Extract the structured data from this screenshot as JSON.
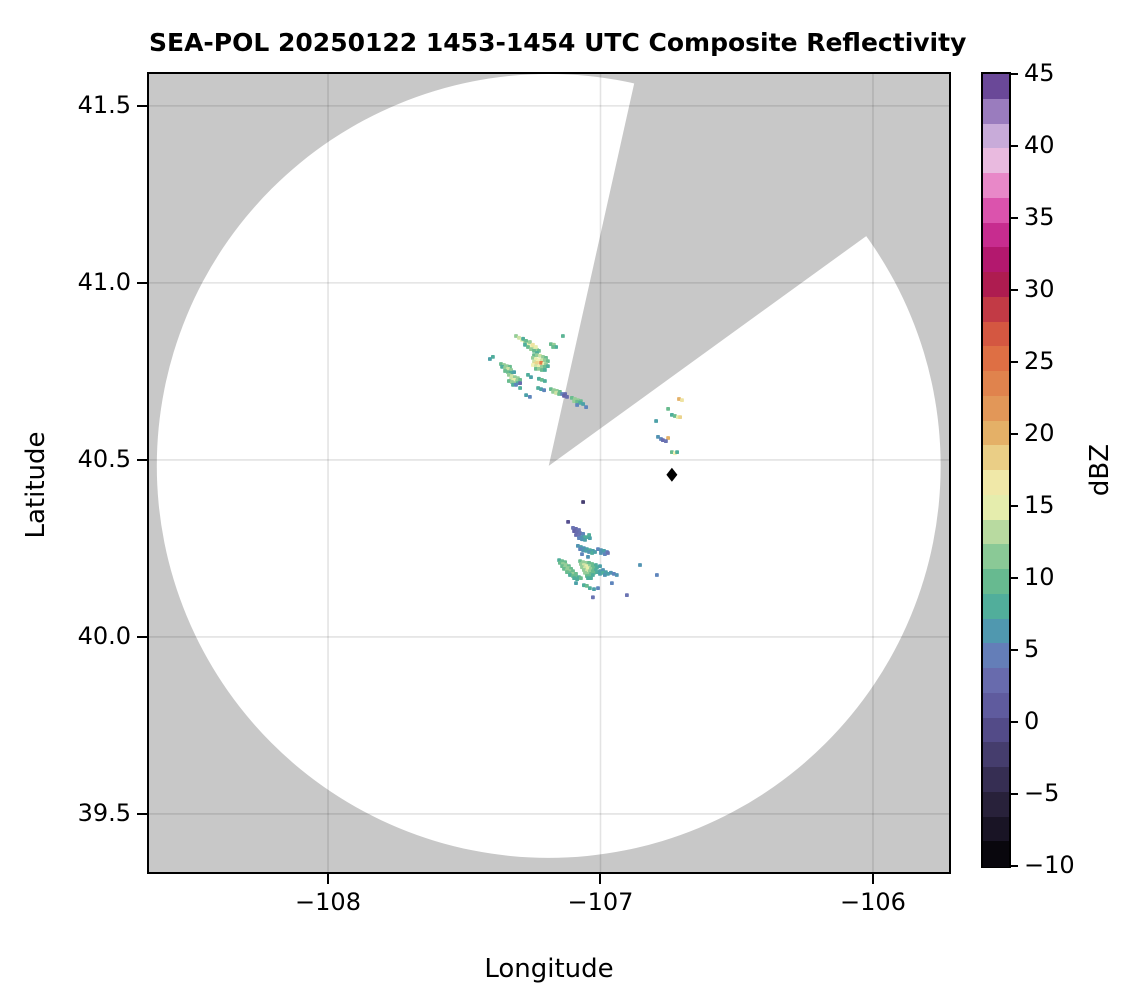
{
  "title": "SEA-POL 20250122 1453-1454 UTC Composite Reflectivity",
  "axes": {
    "xlabel": "Longitude",
    "ylabel": "Latitude",
    "xlim": [
      -108.657,
      -105.721
    ],
    "ylim": [
      39.336,
      41.59
    ],
    "x_ticks": [
      {
        "value": -108,
        "label": "−108"
      },
      {
        "value": -107,
        "label": "−107"
      },
      {
        "value": -106,
        "label": "−106"
      }
    ],
    "y_ticks": [
      {
        "value": 41.5,
        "label": "41.5"
      },
      {
        "value": 41.0,
        "label": "41.0"
      },
      {
        "value": 40.5,
        "label": "40.5"
      },
      {
        "value": 40.0,
        "label": "40.0"
      },
      {
        "value": 39.5,
        "label": "39.5"
      }
    ],
    "grid_color": "rgba(0,0,0,0.11)"
  },
  "colorbar": {
    "label": "dBZ",
    "vmin": -10,
    "vmax": 45,
    "n_bands": 32,
    "tick_values": [
      45,
      40,
      35,
      30,
      25,
      20,
      15,
      10,
      5,
      0,
      -5,
      -10
    ],
    "tick_labels": [
      "45",
      "40",
      "35",
      "30",
      "25",
      "20",
      "15",
      "10",
      "5",
      "0",
      "−5",
      "−10"
    ]
  },
  "chart_data": {
    "type": "heatmap",
    "subtype": "radar-composite-reflectivity-ppi",
    "units": "dBZ",
    "background": {
      "outside_scan_color": "#c8c8c8",
      "inside_scan_color": "#ffffff"
    },
    "radar": {
      "center_lon": -107.19,
      "center_lat": 40.483,
      "range_radius_deg_lat": 1.107,
      "missing_sector_azimuth_deg": [
        12.6,
        54.1
      ]
    },
    "site_marker": {
      "lon": -106.738,
      "lat": 40.458,
      "symbol": "diamond",
      "color": "#000000"
    },
    "colormap_stops": [
      [
        -10,
        "#000000"
      ],
      [
        -8,
        "#14101e"
      ],
      [
        -6,
        "#251f36"
      ],
      [
        -4,
        "#362e53"
      ],
      [
        -2,
        "#473f71"
      ],
      [
        0,
        "#575090"
      ],
      [
        2,
        "#6563a8"
      ],
      [
        4,
        "#6b74b3"
      ],
      [
        5,
        "#5f85bc"
      ],
      [
        6,
        "#5294b2"
      ],
      [
        7,
        "#4ca1a8"
      ],
      [
        8,
        "#50ae9b"
      ],
      [
        10,
        "#6abc8f"
      ],
      [
        12,
        "#95cd98"
      ],
      [
        14,
        "#cfe3a6"
      ],
      [
        15,
        "#e7eeae"
      ],
      [
        16,
        "#f2f1b5"
      ],
      [
        18,
        "#ebd48d"
      ],
      [
        20,
        "#e4b168"
      ],
      [
        22,
        "#e29456"
      ],
      [
        24,
        "#e07d4a"
      ],
      [
        26,
        "#dd6741"
      ],
      [
        28,
        "#ca4542"
      ],
      [
        30,
        "#b1234c"
      ],
      [
        31,
        "#a91257"
      ],
      [
        33,
        "#bb1c80"
      ],
      [
        35,
        "#d743a4"
      ],
      [
        37,
        "#e77fc4"
      ],
      [
        38,
        "#eba2d4"
      ],
      [
        39,
        "#e9badf"
      ],
      [
        40,
        "#dabde3"
      ],
      [
        41,
        "#c0a3d5"
      ],
      [
        42,
        "#a588c6"
      ],
      [
        43,
        "#8a6cb4"
      ],
      [
        44,
        "#7050a0"
      ],
      [
        44.6,
        "#552f7e"
      ],
      [
        45,
        "#2f0e45"
      ]
    ],
    "echo_cells": [
      [
        -107.31,
        40.85,
        12
      ],
      [
        -107.299,
        40.845,
        14
      ],
      [
        -107.288,
        40.839,
        15
      ],
      [
        -107.277,
        40.833,
        13
      ],
      [
        -107.266,
        40.828,
        15
      ],
      [
        -107.255,
        40.822,
        16
      ],
      [
        -107.244,
        40.816,
        14
      ],
      [
        -107.233,
        40.811,
        12
      ],
      [
        -107.284,
        40.842,
        8
      ],
      [
        -107.273,
        40.836,
        10
      ],
      [
        -107.259,
        40.833,
        12
      ],
      [
        -107.248,
        40.825,
        17
      ],
      [
        -107.237,
        40.819,
        15
      ],
      [
        -107.226,
        40.808,
        10
      ],
      [
        -107.277,
        40.825,
        8
      ],
      [
        -107.266,
        40.819,
        10
      ],
      [
        -107.255,
        40.813,
        12
      ],
      [
        -107.244,
        40.808,
        10
      ],
      [
        -107.233,
        40.802,
        8
      ],
      [
        -107.182,
        40.827,
        10
      ],
      [
        -107.171,
        40.825,
        12
      ],
      [
        -107.163,
        40.819,
        8
      ],
      [
        -107.174,
        40.819,
        10
      ],
      [
        -107.138,
        40.85,
        9
      ],
      [
        -107.244,
        40.796,
        10
      ],
      [
        -107.233,
        40.796,
        12
      ],
      [
        -107.222,
        40.794,
        14
      ],
      [
        -107.211,
        40.791,
        12
      ],
      [
        -107.2,
        40.788,
        10
      ],
      [
        -107.248,
        40.788,
        12
      ],
      [
        -107.237,
        40.785,
        15
      ],
      [
        -107.226,
        40.782,
        16
      ],
      [
        -107.215,
        40.782,
        14
      ],
      [
        -107.204,
        40.782,
        12
      ],
      [
        -107.193,
        40.779,
        10
      ],
      [
        -107.244,
        40.777,
        14
      ],
      [
        -107.233,
        40.774,
        18
      ],
      [
        -107.218,
        40.774,
        24
      ],
      [
        -107.241,
        40.771,
        18
      ],
      [
        -107.207,
        40.771,
        15
      ],
      [
        -107.2,
        40.771,
        12
      ],
      [
        -107.248,
        40.768,
        16
      ],
      [
        -107.237,
        40.765,
        14
      ],
      [
        -107.226,
        40.763,
        15
      ],
      [
        -107.215,
        40.763,
        12
      ],
      [
        -107.204,
        40.763,
        10
      ],
      [
        -107.193,
        40.765,
        8
      ],
      [
        -107.237,
        40.757,
        10
      ],
      [
        -107.226,
        40.757,
        12
      ],
      [
        -107.215,
        40.754,
        10
      ],
      [
        -107.204,
        40.754,
        8
      ],
      [
        -107.395,
        40.791,
        8
      ],
      [
        -107.406,
        40.785,
        7
      ],
      [
        -107.365,
        40.771,
        10
      ],
      [
        -107.354,
        40.768,
        12
      ],
      [
        -107.343,
        40.765,
        12
      ],
      [
        -107.332,
        40.763,
        10
      ],
      [
        -107.361,
        40.763,
        8
      ],
      [
        -107.35,
        40.76,
        12
      ],
      [
        -107.339,
        40.757,
        14
      ],
      [
        -107.328,
        40.754,
        12
      ],
      [
        -107.35,
        40.751,
        10
      ],
      [
        -107.339,
        40.748,
        10
      ],
      [
        -107.328,
        40.746,
        8
      ],
      [
        -107.317,
        40.748,
        7
      ],
      [
        -107.336,
        40.74,
        12
      ],
      [
        -107.325,
        40.737,
        14
      ],
      [
        -107.314,
        40.734,
        12
      ],
      [
        -107.303,
        40.731,
        12
      ],
      [
        -107.328,
        40.729,
        14
      ],
      [
        -107.317,
        40.726,
        15
      ],
      [
        -107.306,
        40.723,
        12
      ],
      [
        -107.295,
        40.726,
        10
      ],
      [
        -107.336,
        40.723,
        10
      ],
      [
        -107.325,
        40.72,
        12
      ],
      [
        -107.314,
        40.717,
        12
      ],
      [
        -107.303,
        40.717,
        8
      ],
      [
        -107.321,
        40.712,
        8
      ],
      [
        -107.31,
        40.712,
        5
      ],
      [
        -107.295,
        40.717,
        3
      ],
      [
        -107.266,
        40.74,
        8
      ],
      [
        -107.255,
        40.734,
        7
      ],
      [
        -107.226,
        40.729,
        8
      ],
      [
        -107.215,
        40.726,
        10
      ],
      [
        -107.204,
        40.723,
        8
      ],
      [
        -107.295,
        40.703,
        8
      ],
      [
        -107.273,
        40.683,
        7
      ],
      [
        -107.259,
        40.678,
        5
      ],
      [
        -107.229,
        40.703,
        8
      ],
      [
        -107.218,
        40.7,
        7
      ],
      [
        -107.207,
        40.697,
        5
      ],
      [
        -107.182,
        40.7,
        10
      ],
      [
        -107.171,
        40.697,
        12
      ],
      [
        -107.16,
        40.695,
        12
      ],
      [
        -107.149,
        40.692,
        10
      ],
      [
        -107.174,
        40.692,
        12
      ],
      [
        -107.163,
        40.689,
        14
      ],
      [
        -107.152,
        40.686,
        10
      ],
      [
        -107.141,
        40.686,
        5
      ],
      [
        -107.13,
        40.686,
        3
      ],
      [
        -107.134,
        40.681,
        2
      ],
      [
        -107.123,
        40.678,
        3
      ],
      [
        -107.105,
        40.675,
        10
      ],
      [
        -107.094,
        40.672,
        12
      ],
      [
        -107.083,
        40.669,
        12
      ],
      [
        -107.072,
        40.666,
        10
      ],
      [
        -107.097,
        40.666,
        12
      ],
      [
        -107.086,
        40.664,
        10
      ],
      [
        -107.075,
        40.661,
        8
      ],
      [
        -107.064,
        40.658,
        7
      ],
      [
        -107.086,
        40.655,
        5
      ],
      [
        -107.053,
        40.649,
        5
      ],
      [
        -106.712,
        40.672,
        20
      ],
      [
        -106.701,
        40.669,
        17
      ],
      [
        -106.752,
        40.644,
        10
      ],
      [
        -106.738,
        40.627,
        8
      ],
      [
        -106.727,
        40.624,
        10
      ],
      [
        -106.716,
        40.621,
        15
      ],
      [
        -106.708,
        40.621,
        18
      ],
      [
        -106.796,
        40.61,
        7
      ],
      [
        -106.789,
        40.565,
        6
      ],
      [
        -106.778,
        40.559,
        5
      ],
      [
        -106.752,
        40.562,
        20
      ],
      [
        -106.771,
        40.556,
        3
      ],
      [
        -106.76,
        40.553,
        4
      ],
      [
        -106.738,
        40.522,
        10
      ],
      [
        -106.727,
        40.519,
        16
      ],
      [
        -106.719,
        40.522,
        8
      ],
      [
        -107.064,
        40.381,
        -2
      ],
      [
        -107.119,
        40.325,
        0
      ],
      [
        -107.101,
        40.308,
        4
      ],
      [
        -107.09,
        40.305,
        3
      ],
      [
        -107.079,
        40.302,
        4
      ],
      [
        -107.097,
        40.299,
        2
      ],
      [
        -107.086,
        40.296,
        3
      ],
      [
        -107.075,
        40.293,
        4
      ],
      [
        -107.064,
        40.291,
        5
      ],
      [
        -107.09,
        40.288,
        3
      ],
      [
        -107.079,
        40.285,
        4
      ],
      [
        -107.068,
        40.282,
        6
      ],
      [
        -107.057,
        40.282,
        8
      ],
      [
        -107.079,
        40.279,
        5
      ],
      [
        -107.068,
        40.276,
        6
      ],
      [
        -107.057,
        40.274,
        7
      ],
      [
        -107.046,
        40.282,
        8
      ],
      [
        -107.039,
        40.279,
        7
      ],
      [
        -107.042,
        40.288,
        8
      ],
      [
        -107.083,
        40.257,
        6
      ],
      [
        -107.072,
        40.254,
        7
      ],
      [
        -107.061,
        40.251,
        6
      ],
      [
        -107.05,
        40.248,
        7
      ],
      [
        -107.039,
        40.245,
        8
      ],
      [
        -107.028,
        40.243,
        7
      ],
      [
        -107.075,
        40.248,
        5
      ],
      [
        -107.064,
        40.245,
        6
      ],
      [
        -107.053,
        40.243,
        7
      ],
      [
        -107.042,
        40.24,
        6
      ],
      [
        -107.031,
        40.237,
        8
      ],
      [
        -107.02,
        40.24,
        7
      ],
      [
        -107.009,
        40.248,
        5
      ],
      [
        -106.998,
        40.245,
        6
      ],
      [
        -106.987,
        40.243,
        7
      ],
      [
        -106.976,
        40.24,
        5
      ],
      [
        -106.998,
        40.237,
        6
      ],
      [
        -106.984,
        40.234,
        5
      ],
      [
        -106.973,
        40.237,
        4
      ],
      [
        -107.068,
        40.234,
        5
      ],
      [
        -107.046,
        40.226,
        6
      ],
      [
        -107.152,
        40.217,
        8
      ],
      [
        -107.141,
        40.214,
        10
      ],
      [
        -107.13,
        40.211,
        10
      ],
      [
        -107.149,
        40.209,
        10
      ],
      [
        -107.138,
        40.206,
        12
      ],
      [
        -107.127,
        40.203,
        12
      ],
      [
        -107.116,
        40.2,
        10
      ],
      [
        -107.141,
        40.2,
        10
      ],
      [
        -107.13,
        40.197,
        12
      ],
      [
        -107.119,
        40.194,
        12
      ],
      [
        -107.108,
        40.192,
        10
      ],
      [
        -107.134,
        40.192,
        10
      ],
      [
        -107.123,
        40.189,
        12
      ],
      [
        -107.112,
        40.186,
        12
      ],
      [
        -107.101,
        40.186,
        10
      ],
      [
        -107.123,
        40.183,
        10
      ],
      [
        -107.112,
        40.18,
        10
      ],
      [
        -107.101,
        40.178,
        12
      ],
      [
        -107.09,
        40.178,
        10
      ],
      [
        -107.112,
        40.175,
        8
      ],
      [
        -107.101,
        40.172,
        10
      ],
      [
        -107.09,
        40.169,
        10
      ],
      [
        -107.079,
        40.169,
        8
      ],
      [
        -107.097,
        40.166,
        8
      ],
      [
        -107.086,
        40.163,
        8
      ],
      [
        -107.072,
        40.166,
        10
      ],
      [
        -107.075,
        40.214,
        10
      ],
      [
        -107.064,
        40.211,
        12
      ],
      [
        -107.053,
        40.209,
        12
      ],
      [
        -107.042,
        40.209,
        10
      ],
      [
        -107.031,
        40.206,
        10
      ],
      [
        -107.072,
        40.206,
        12
      ],
      [
        -107.061,
        40.203,
        14
      ],
      [
        -107.05,
        40.2,
        15
      ],
      [
        -107.039,
        40.2,
        12
      ],
      [
        -107.028,
        40.2,
        10
      ],
      [
        -107.017,
        40.203,
        8
      ],
      [
        -107.068,
        40.197,
        12
      ],
      [
        -107.057,
        40.194,
        14
      ],
      [
        -107.046,
        40.194,
        15
      ],
      [
        -107.035,
        40.192,
        12
      ],
      [
        -107.024,
        40.194,
        10
      ],
      [
        -107.013,
        40.197,
        8
      ],
      [
        -107.002,
        40.2,
        7
      ],
      [
        -107.061,
        40.189,
        12
      ],
      [
        -107.05,
        40.186,
        14
      ],
      [
        -107.039,
        40.186,
        12
      ],
      [
        -107.028,
        40.186,
        10
      ],
      [
        -107.017,
        40.189,
        8
      ],
      [
        -107.057,
        40.181,
        12
      ],
      [
        -107.046,
        40.178,
        12
      ],
      [
        -107.035,
        40.178,
        10
      ],
      [
        -107.024,
        40.181,
        10
      ],
      [
        -107.013,
        40.183,
        8
      ],
      [
        -107.002,
        40.186,
        7
      ],
      [
        -106.991,
        40.189,
        6
      ],
      [
        -107.05,
        40.172,
        10
      ],
      [
        -107.039,
        40.172,
        10
      ],
      [
        -107.028,
        40.175,
        8
      ],
      [
        -107.002,
        40.178,
        7
      ],
      [
        -106.991,
        40.181,
        8
      ],
      [
        -106.98,
        40.183,
        7
      ],
      [
        -107.046,
        40.166,
        8
      ],
      [
        -107.035,
        40.166,
        8
      ],
      [
        -106.984,
        40.175,
        6
      ],
      [
        -106.973,
        40.178,
        7
      ],
      [
        -106.962,
        40.181,
        6
      ],
      [
        -106.951,
        40.178,
        5
      ],
      [
        -106.94,
        40.175,
        6
      ],
      [
        -107.09,
        40.152,
        7
      ],
      [
        -107.061,
        40.146,
        8
      ],
      [
        -107.05,
        40.144,
        10
      ],
      [
        -107.039,
        40.138,
        8
      ],
      [
        -107.024,
        40.135,
        7
      ],
      [
        -107.009,
        40.138,
        5
      ],
      [
        -106.958,
        40.152,
        5
      ],
      [
        -106.903,
        40.118,
        4
      ],
      [
        -107.028,
        40.112,
        4
      ],
      [
        -106.855,
        40.203,
        6
      ],
      [
        -106.793,
        40.175,
        5
      ]
    ]
  }
}
